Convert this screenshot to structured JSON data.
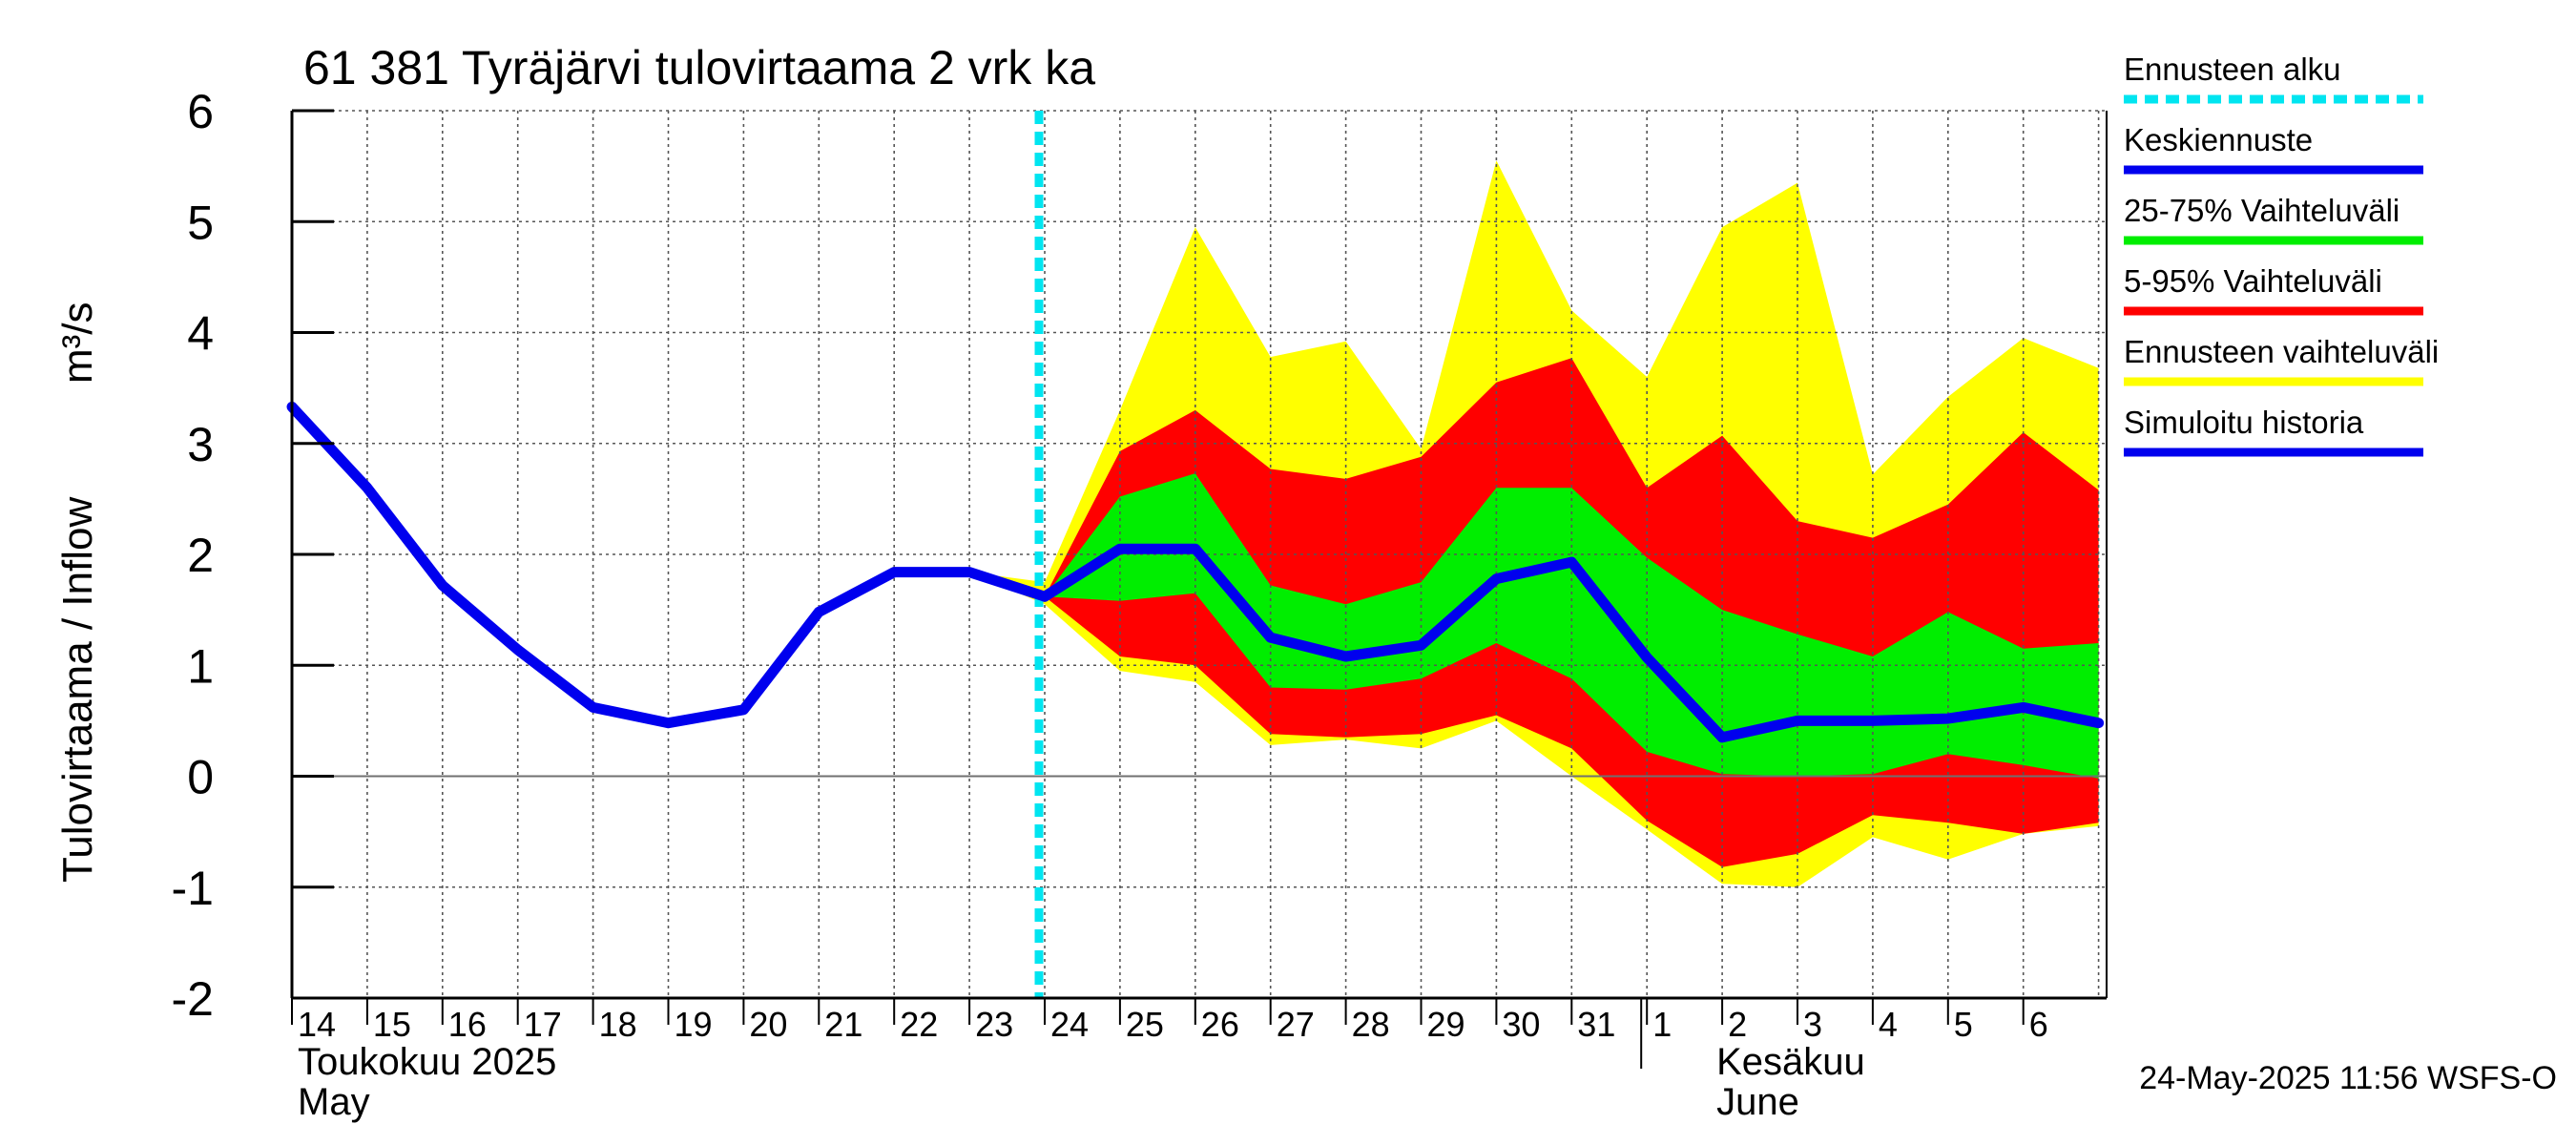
{
  "chart_data": {
    "type": "area",
    "title": "61 381 Tyräjärvi tulovirtaama 2 vrk ka",
    "ylabel": "Tulovirtaama / Inflow",
    "yunit": "m³/s",
    "ylim": [
      -2,
      6
    ],
    "yticks": [
      6,
      5,
      4,
      3,
      2,
      1,
      0,
      -1,
      -2
    ],
    "dates": [
      "2025-05-14",
      "2025-05-15",
      "2025-05-16",
      "2025-05-17",
      "2025-05-18",
      "2025-05-19",
      "2025-05-20",
      "2025-05-21",
      "2025-05-22",
      "2025-05-23",
      "2025-05-24",
      "2025-05-25",
      "2025-05-26",
      "2025-05-27",
      "2025-05-28",
      "2025-05-29",
      "2025-05-30",
      "2025-05-31",
      "2025-06-01",
      "2025-06-02",
      "2025-06-03",
      "2025-06-04",
      "2025-06-05",
      "2025-06-06",
      "2025-06-07"
    ],
    "day_labels": [
      "14",
      "15",
      "16",
      "17",
      "18",
      "19",
      "20",
      "21",
      "22",
      "23",
      "24",
      "25",
      "26",
      "27",
      "28",
      "29",
      "30",
      "31",
      "1",
      "2",
      "3",
      "4",
      "5",
      "6"
    ],
    "month_labels": [
      {
        "line1": "Toukokuu  2025",
        "line2": "May",
        "anchor_date": "2025-05-14"
      },
      {
        "line1": "Kesäkuu",
        "line2": "June",
        "anchor_date": "2025-06-02"
      }
    ],
    "forecast_start": "2025-05-24",
    "grid": true,
    "legend_position": "right",
    "legend": [
      {
        "label": "Ennusteen alku",
        "color": "#00e5f0",
        "style": "dashed"
      },
      {
        "label": "Keskiennuste",
        "color": "#0000ee",
        "style": "line"
      },
      {
        "label": "25-75% Vaihteluväli",
        "color": "#00ee00",
        "style": "line"
      },
      {
        "label": "5-95% Vaihteluväli",
        "color": "#ff0000",
        "style": "line"
      },
      {
        "label": "Ennusteen vaihteluväli",
        "color": "#ffff00",
        "style": "line"
      },
      {
        "label": "Simuloitu historia",
        "color": "#0000ee",
        "style": "line"
      }
    ],
    "series": [
      {
        "name": "Simuloitu historia",
        "color": "#0000ee",
        "points": [
          [
            "2025-05-14",
            3.33
          ],
          [
            "2025-05-15",
            2.6
          ],
          [
            "2025-05-16",
            1.72
          ],
          [
            "2025-05-17",
            1.14
          ],
          [
            "2025-05-18",
            0.62
          ],
          [
            "2025-05-19",
            0.48
          ],
          [
            "2025-05-20",
            0.6
          ],
          [
            "2025-05-21",
            1.48
          ],
          [
            "2025-05-22",
            1.84
          ],
          [
            "2025-05-23",
            1.84
          ],
          [
            "2025-05-24",
            1.62
          ]
        ]
      },
      {
        "name": "Keskiennuste",
        "color": "#0000ee",
        "points": [
          [
            "2025-05-24",
            1.62
          ],
          [
            "2025-05-25",
            2.05
          ],
          [
            "2025-05-26",
            2.05
          ],
          [
            "2025-05-27",
            1.25
          ],
          [
            "2025-05-28",
            1.08
          ],
          [
            "2025-05-29",
            1.18
          ],
          [
            "2025-05-30",
            1.78
          ],
          [
            "2025-05-31",
            1.93
          ],
          [
            "2025-06-01",
            1.07
          ],
          [
            "2025-06-02",
            0.35
          ],
          [
            "2025-06-03",
            0.5
          ],
          [
            "2025-06-04",
            0.5
          ],
          [
            "2025-06-05",
            0.52
          ],
          [
            "2025-06-06",
            0.62
          ],
          [
            "2025-06-07",
            0.48
          ]
        ]
      }
    ],
    "bands": [
      {
        "name": "Ennusteen vaihteluväli",
        "color": "#ffff00",
        "dates": [
          "2025-05-23",
          "2025-05-24",
          "2025-05-25",
          "2025-05-26",
          "2025-05-27",
          "2025-05-28",
          "2025-05-29",
          "2025-05-30",
          "2025-05-31",
          "2025-06-01",
          "2025-06-02",
          "2025-06-03",
          "2025-06-04",
          "2025-06-05",
          "2025-06-06",
          "2025-06-07"
        ],
        "upper": [
          1.84,
          1.75,
          3.3,
          4.95,
          3.78,
          3.92,
          2.95,
          5.55,
          4.2,
          3.6,
          4.95,
          5.35,
          2.72,
          3.42,
          3.95,
          3.68
        ],
        "lower": [
          1.84,
          1.55,
          0.95,
          0.85,
          0.28,
          0.33,
          0.25,
          0.5,
          0.0,
          -0.48,
          -0.97,
          -1.0,
          -0.55,
          -0.75,
          -0.52,
          -0.45
        ]
      },
      {
        "name": "5-95% Vaihteluväli",
        "color": "#ff0000",
        "dates": [
          "2025-05-24",
          "2025-05-25",
          "2025-05-26",
          "2025-05-27",
          "2025-05-28",
          "2025-05-29",
          "2025-05-30",
          "2025-05-31",
          "2025-06-01",
          "2025-06-02",
          "2025-06-03",
          "2025-06-04",
          "2025-06-05",
          "2025-06-06",
          "2025-06-07"
        ],
        "upper": [
          1.62,
          2.93,
          3.3,
          2.77,
          2.68,
          2.88,
          3.55,
          3.77,
          2.6,
          3.07,
          2.3,
          2.15,
          2.45,
          3.1,
          2.58
        ],
        "lower": [
          1.62,
          1.08,
          1.0,
          0.38,
          0.35,
          0.38,
          0.55,
          0.25,
          -0.4,
          -0.82,
          -0.7,
          -0.35,
          -0.42,
          -0.52,
          -0.42
        ]
      },
      {
        "name": "25-75% Vaihteluväli",
        "color": "#00ee00",
        "dates": [
          "2025-05-24",
          "2025-05-25",
          "2025-05-26",
          "2025-05-27",
          "2025-05-28",
          "2025-05-29",
          "2025-05-30",
          "2025-05-31",
          "2025-06-01",
          "2025-06-02",
          "2025-06-03",
          "2025-06-04",
          "2025-06-05",
          "2025-06-06",
          "2025-06-07"
        ],
        "upper": [
          1.62,
          2.52,
          2.73,
          1.72,
          1.55,
          1.75,
          2.6,
          2.6,
          1.97,
          1.5,
          1.28,
          1.08,
          1.48,
          1.15,
          1.2
        ],
        "lower": [
          1.62,
          1.58,
          1.65,
          0.8,
          0.78,
          0.88,
          1.2,
          0.88,
          0.22,
          0.02,
          0.0,
          0.02,
          0.2,
          0.1,
          -0.02
        ]
      }
    ],
    "footer": "24-May-2025 11:56 WSFS-O"
  }
}
